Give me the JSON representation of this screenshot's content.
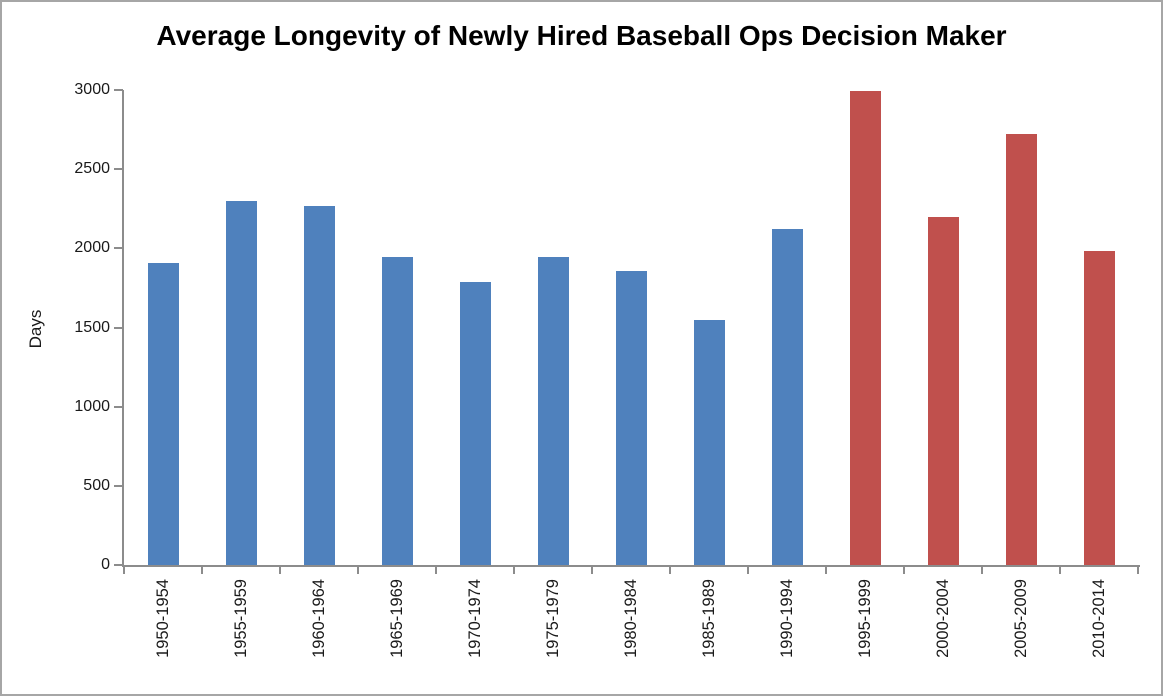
{
  "chart_data": {
    "type": "bar",
    "title": "Average Longevity of Newly Hired Baseball Ops Decision Maker",
    "xlabel": "",
    "ylabel": "Days",
    "categories": [
      "1950-1954",
      "1955-1959",
      "1960-1964",
      "1965-1969",
      "1970-1974",
      "1975-1979",
      "1980-1984",
      "1985-1989",
      "1990-1994",
      "1995-1999",
      "2000-2004",
      "2005-2009",
      "2010-2014"
    ],
    "values": [
      1905,
      2300,
      2265,
      1945,
      1790,
      1945,
      1860,
      1550,
      2120,
      2995,
      2195,
      2720,
      1985
    ],
    "bar_colors": [
      "#4F81BD",
      "#4F81BD",
      "#4F81BD",
      "#4F81BD",
      "#4F81BD",
      "#4F81BD",
      "#4F81BD",
      "#4F81BD",
      "#4F81BD",
      "#C0504D",
      "#C0504D",
      "#C0504D",
      "#C0504D"
    ],
    "ylim": [
      0,
      3000
    ],
    "yticks": [
      0,
      500,
      1000,
      1500,
      2000,
      2500,
      3000
    ],
    "grid": false,
    "legend": false
  },
  "colors": {
    "bar_blue": "#4F81BD",
    "bar_red": "#C0504D",
    "axis": "#8C8C8C",
    "frame": "#A6A6A6",
    "text": "#1A1A1A",
    "background": "#FFFFFF"
  }
}
